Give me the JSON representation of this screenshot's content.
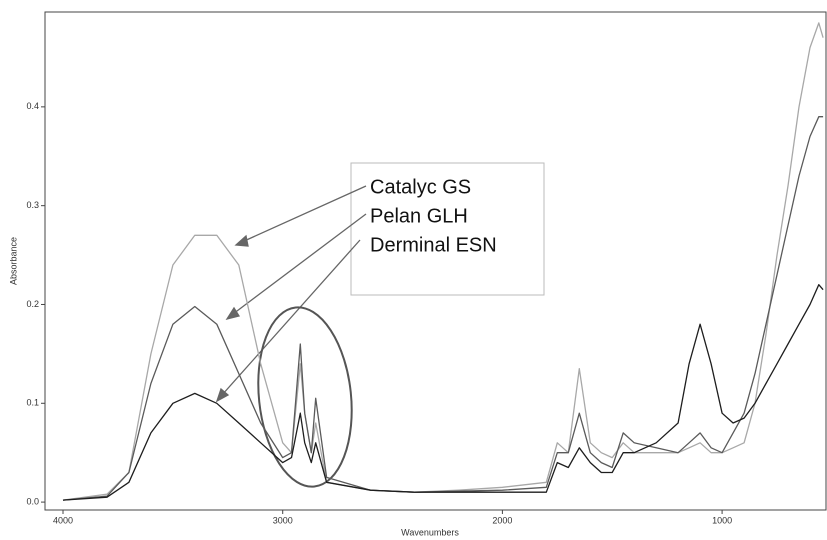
{
  "chart_data": {
    "type": "line",
    "xlabel": "Wavenumbers",
    "ylabel": "Absorbance",
    "x": [
      4000,
      3800,
      3700,
      3600,
      3500,
      3400,
      3300,
      3200,
      3100,
      3000,
      2960,
      2920,
      2900,
      2870,
      2850,
      2800,
      2600,
      2400,
      2200,
      2000,
      1800,
      1750,
      1700,
      1650,
      1600,
      1550,
      1500,
      1450,
      1400,
      1300,
      1200,
      1150,
      1100,
      1050,
      1000,
      950,
      900,
      850,
      800,
      750,
      700,
      650,
      600,
      560,
      540
    ],
    "series": [
      {
        "name": "Catalyc GS",
        "color": "#a8a8a8",
        "values": [
          0.002,
          0.008,
          0.03,
          0.15,
          0.24,
          0.27,
          0.27,
          0.24,
          0.14,
          0.06,
          0.05,
          0.14,
          0.09,
          0.05,
          0.08,
          0.02,
          0.012,
          0.01,
          0.012,
          0.015,
          0.02,
          0.06,
          0.05,
          0.135,
          0.06,
          0.05,
          0.045,
          0.06,
          0.05,
          0.05,
          0.05,
          0.055,
          0.06,
          0.05,
          0.05,
          0.055,
          0.06,
          0.1,
          0.17,
          0.25,
          0.32,
          0.4,
          0.46,
          0.485,
          0.47
        ]
      },
      {
        "name": "Pelan GLH",
        "color": "#5a5a5a",
        "values": [
          0.002,
          0.006,
          0.03,
          0.12,
          0.18,
          0.198,
          0.18,
          0.13,
          0.08,
          0.045,
          0.05,
          0.16,
          0.09,
          0.05,
          0.105,
          0.025,
          0.012,
          0.01,
          0.011,
          0.012,
          0.015,
          0.05,
          0.05,
          0.09,
          0.05,
          0.04,
          0.035,
          0.07,
          0.06,
          0.055,
          0.05,
          0.06,
          0.07,
          0.055,
          0.05,
          0.07,
          0.09,
          0.13,
          0.18,
          0.23,
          0.28,
          0.33,
          0.37,
          0.39,
          0.39
        ]
      },
      {
        "name": "Derminal ESN",
        "color": "#1e1e1e",
        "values": [
          0.002,
          0.005,
          0.02,
          0.07,
          0.1,
          0.11,
          0.1,
          0.08,
          0.06,
          0.04,
          0.045,
          0.09,
          0.06,
          0.04,
          0.06,
          0.02,
          0.012,
          0.01,
          0.01,
          0.01,
          0.01,
          0.04,
          0.035,
          0.055,
          0.04,
          0.03,
          0.03,
          0.05,
          0.05,
          0.06,
          0.08,
          0.14,
          0.18,
          0.14,
          0.09,
          0.08,
          0.085,
          0.1,
          0.12,
          0.14,
          0.16,
          0.18,
          0.2,
          0.22,
          0.215
        ]
      }
    ],
    "xlim": [
      4082,
      527
    ],
    "xticks": [
      4000,
      3000,
      2000,
      1000
    ],
    "ylim": [
      -0.008,
      0.496
    ],
    "yticks": [
      {
        "value": 0,
        "label": "0.0"
      },
      0.1,
      0.2,
      0.3,
      0.4
    ],
    "grid": false
  }
}
